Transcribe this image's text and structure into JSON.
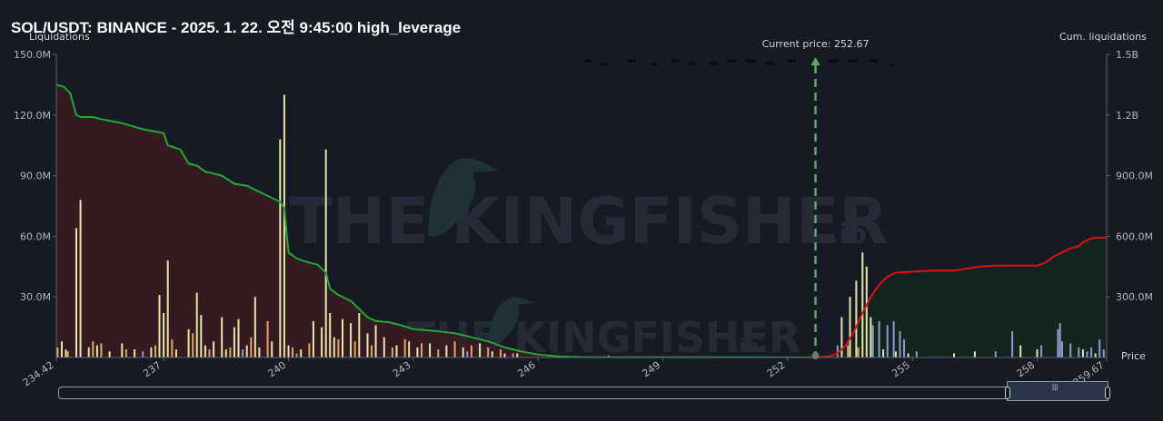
{
  "title": "SOL/USDT: BINANCE - 2025. 1. 22. 오전 9:45:00 high_leverage",
  "current_price_label": "Current price: 252.67",
  "watermark": "THE KINGFISHER",
  "watermark_suffix": ".io",
  "colors": {
    "background": "#161a25",
    "short_liq_area": "#3a1c22",
    "long_liq_area": "#13271e",
    "short_cum_line": "#22a834",
    "long_cum_line": "#e01010",
    "current_price_line": "#5fa866",
    "bar_orange": "#e8a35f",
    "bar_yellow": "#e6e6a8",
    "bar_blue": "#8a9ccc"
  },
  "chart_data": {
    "type": "bar",
    "title": "SOL/USDT: BINANCE - 2025. 1. 22. 오전 9:45:00 high_leverage",
    "xlabel": "Price",
    "ylabel": "Liquidations",
    "y2label": "Cum. liquidations",
    "xlim": [
      234.42,
      259.67
    ],
    "ylim": [
      0,
      150000000
    ],
    "y2lim": [
      0,
      1500000000
    ],
    "x_ticks": [
      "234.42",
      "237",
      "240",
      "243",
      "246",
      "249",
      "252",
      "255",
      "258",
      "259.67"
    ],
    "y_ticks": [
      "150.0M",
      "120.0M",
      "90.0M",
      "60.0M",
      "30.0M"
    ],
    "y2_ticks": [
      "1.5B",
      "1.2B",
      "900.0M",
      "600.0M",
      "300.0M"
    ],
    "current_price": 252.67,
    "grid": false,
    "series": [
      {
        "kind": "bar",
        "color": "#e6e6a8",
        "points": [
          [
            234.55,
            8
          ],
          [
            234.65,
            4
          ],
          [
            234.9,
            64
          ],
          [
            235.0,
            78
          ],
          [
            235.2,
            5
          ],
          [
            235.4,
            6
          ],
          [
            235.7,
            3
          ],
          [
            236.0,
            7
          ],
          [
            236.3,
            4
          ],
          [
            236.7,
            5
          ],
          [
            236.9,
            31
          ],
          [
            237.0,
            22
          ],
          [
            237.1,
            48
          ],
          [
            237.3,
            4
          ],
          [
            237.6,
            14
          ],
          [
            237.8,
            32
          ],
          [
            237.9,
            21
          ],
          [
            238.0,
            6
          ],
          [
            238.2,
            8
          ],
          [
            238.4,
            20
          ],
          [
            238.5,
            4
          ],
          [
            238.7,
            15
          ],
          [
            238.8,
            19
          ],
          [
            239.0,
            6
          ],
          [
            239.2,
            30
          ],
          [
            239.3,
            5
          ],
          [
            239.6,
            8
          ],
          [
            239.8,
            108
          ],
          [
            239.9,
            130
          ],
          [
            240.0,
            6
          ],
          [
            240.3,
            4
          ],
          [
            240.6,
            18
          ],
          [
            240.8,
            15
          ],
          [
            240.9,
            103
          ],
          [
            241.0,
            22
          ],
          [
            241.1,
            10
          ],
          [
            241.3,
            19
          ],
          [
            241.5,
            17
          ],
          [
            241.7,
            22
          ],
          [
            241.9,
            12
          ],
          [
            242.1,
            16
          ],
          [
            242.3,
            10
          ],
          [
            242.6,
            6
          ],
          [
            242.9,
            8
          ],
          [
            243.1,
            5
          ],
          [
            243.4,
            7
          ],
          [
            243.8,
            6
          ],
          [
            244.2,
            5
          ],
          [
            244.6,
            7
          ],
          [
            244.9,
            3
          ],
          [
            245.2,
            2
          ],
          [
            245.5,
            2
          ],
          [
            253.3,
            20
          ],
          [
            253.5,
            30
          ],
          [
            253.65,
            38
          ],
          [
            253.8,
            52
          ],
          [
            253.9,
            45
          ],
          [
            254.0,
            20
          ],
          [
            254.3,
            4
          ],
          [
            254.6,
            3
          ],
          [
            254.9,
            2
          ],
          [
            256.0,
            2
          ],
          [
            256.5,
            3
          ],
          [
            257.6,
            6
          ],
          [
            258.0,
            4
          ],
          [
            258.5,
            3
          ],
          [
            259.1,
            4
          ],
          [
            259.4,
            2
          ]
        ]
      },
      {
        "kind": "bar",
        "color": "#e8a35f",
        "points": [
          [
            234.45,
            5
          ],
          [
            234.7,
            3
          ],
          [
            235.3,
            8
          ],
          [
            235.5,
            7
          ],
          [
            236.1,
            4
          ],
          [
            236.8,
            6
          ],
          [
            237.2,
            9
          ],
          [
            237.7,
            12
          ],
          [
            238.1,
            4
          ],
          [
            238.6,
            5
          ],
          [
            239.1,
            10
          ],
          [
            239.5,
            18
          ],
          [
            240.1,
            5
          ],
          [
            240.5,
            7
          ],
          [
            241.2,
            9
          ],
          [
            241.6,
            8
          ],
          [
            242.0,
            6
          ],
          [
            242.5,
            5
          ],
          [
            242.8,
            9
          ],
          [
            243.2,
            7
          ],
          [
            243.6,
            4
          ],
          [
            244.0,
            8
          ],
          [
            244.4,
            6
          ],
          [
            244.8,
            5
          ],
          [
            245.1,
            4
          ],
          [
            253.45,
            6
          ],
          [
            253.7,
            5
          ]
        ]
      },
      {
        "kind": "bar",
        "color": "#8a9ccc",
        "points": [
          [
            236.5,
            3
          ],
          [
            238.9,
            4
          ],
          [
            240.2,
            2
          ],
          [
            244.3,
            3
          ],
          [
            245.4,
            2
          ],
          [
            246.5,
            1
          ],
          [
            247.7,
            1
          ],
          [
            253.2,
            6
          ],
          [
            254.05,
            16
          ],
          [
            254.2,
            18
          ],
          [
            254.4,
            16
          ],
          [
            254.55,
            18
          ],
          [
            254.7,
            13
          ],
          [
            254.8,
            9
          ],
          [
            255.1,
            3
          ],
          [
            257.0,
            3
          ],
          [
            258.1,
            6
          ],
          [
            258.5,
            14
          ],
          [
            258.6,
            8
          ],
          [
            258.8,
            7
          ],
          [
            259.0,
            5
          ],
          [
            259.2,
            3
          ],
          [
            259.3,
            5
          ],
          [
            259.5,
            9
          ],
          [
            259.6,
            4
          ],
          [
            257.4,
            13
          ],
          [
            258.55,
            17
          ]
        ]
      },
      {
        "kind": "line",
        "color": "#22a834",
        "points": [
          [
            234.42,
            1350
          ],
          [
            234.6,
            1340
          ],
          [
            234.75,
            1310
          ],
          [
            234.9,
            1200
          ],
          [
            235.0,
            1190
          ],
          [
            235.3,
            1190
          ],
          [
            235.5,
            1180
          ],
          [
            236.0,
            1160
          ],
          [
            236.5,
            1130
          ],
          [
            237.0,
            1110
          ],
          [
            237.1,
            1050
          ],
          [
            237.4,
            1030
          ],
          [
            237.6,
            960
          ],
          [
            237.8,
            950
          ],
          [
            238.0,
            920
          ],
          [
            238.4,
            900
          ],
          [
            238.7,
            860
          ],
          [
            239.0,
            850
          ],
          [
            239.2,
            830
          ],
          [
            239.5,
            800
          ],
          [
            239.8,
            770
          ],
          [
            239.9,
            740
          ],
          [
            240.0,
            520
          ],
          [
            240.2,
            490
          ],
          [
            240.4,
            475
          ],
          [
            240.7,
            460
          ],
          [
            240.9,
            420
          ],
          [
            241.0,
            340
          ],
          [
            241.2,
            310
          ],
          [
            241.5,
            280
          ],
          [
            241.7,
            240
          ],
          [
            241.9,
            200
          ],
          [
            242.1,
            180
          ],
          [
            242.4,
            175
          ],
          [
            242.7,
            160
          ],
          [
            243.0,
            140
          ],
          [
            243.3,
            135
          ],
          [
            243.6,
            130
          ],
          [
            244.0,
            120
          ],
          [
            244.4,
            100
          ],
          [
            244.8,
            80
          ],
          [
            245.2,
            50
          ],
          [
            245.6,
            30
          ],
          [
            246.0,
            15
          ],
          [
            246.5,
            5
          ],
          [
            247.0,
            2
          ],
          [
            252.67,
            0
          ]
        ]
      },
      {
        "kind": "line",
        "color": "#e01010",
        "points": [
          [
            252.67,
            0
          ],
          [
            253.0,
            5
          ],
          [
            253.2,
            20
          ],
          [
            253.4,
            60
          ],
          [
            253.6,
            130
          ],
          [
            253.8,
            220
          ],
          [
            254.0,
            300
          ],
          [
            254.2,
            360
          ],
          [
            254.4,
            400
          ],
          [
            254.6,
            420
          ],
          [
            255.0,
            425
          ],
          [
            255.5,
            430
          ],
          [
            256.0,
            430
          ],
          [
            256.3,
            440
          ],
          [
            256.6,
            450
          ],
          [
            257.0,
            455
          ],
          [
            257.5,
            455
          ],
          [
            258.0,
            455
          ],
          [
            258.2,
            470
          ],
          [
            258.4,
            500
          ],
          [
            258.6,
            520
          ],
          [
            258.8,
            540
          ],
          [
            259.0,
            550
          ],
          [
            259.1,
            570
          ],
          [
            259.3,
            590
          ],
          [
            259.67,
            595
          ]
        ]
      }
    ]
  }
}
